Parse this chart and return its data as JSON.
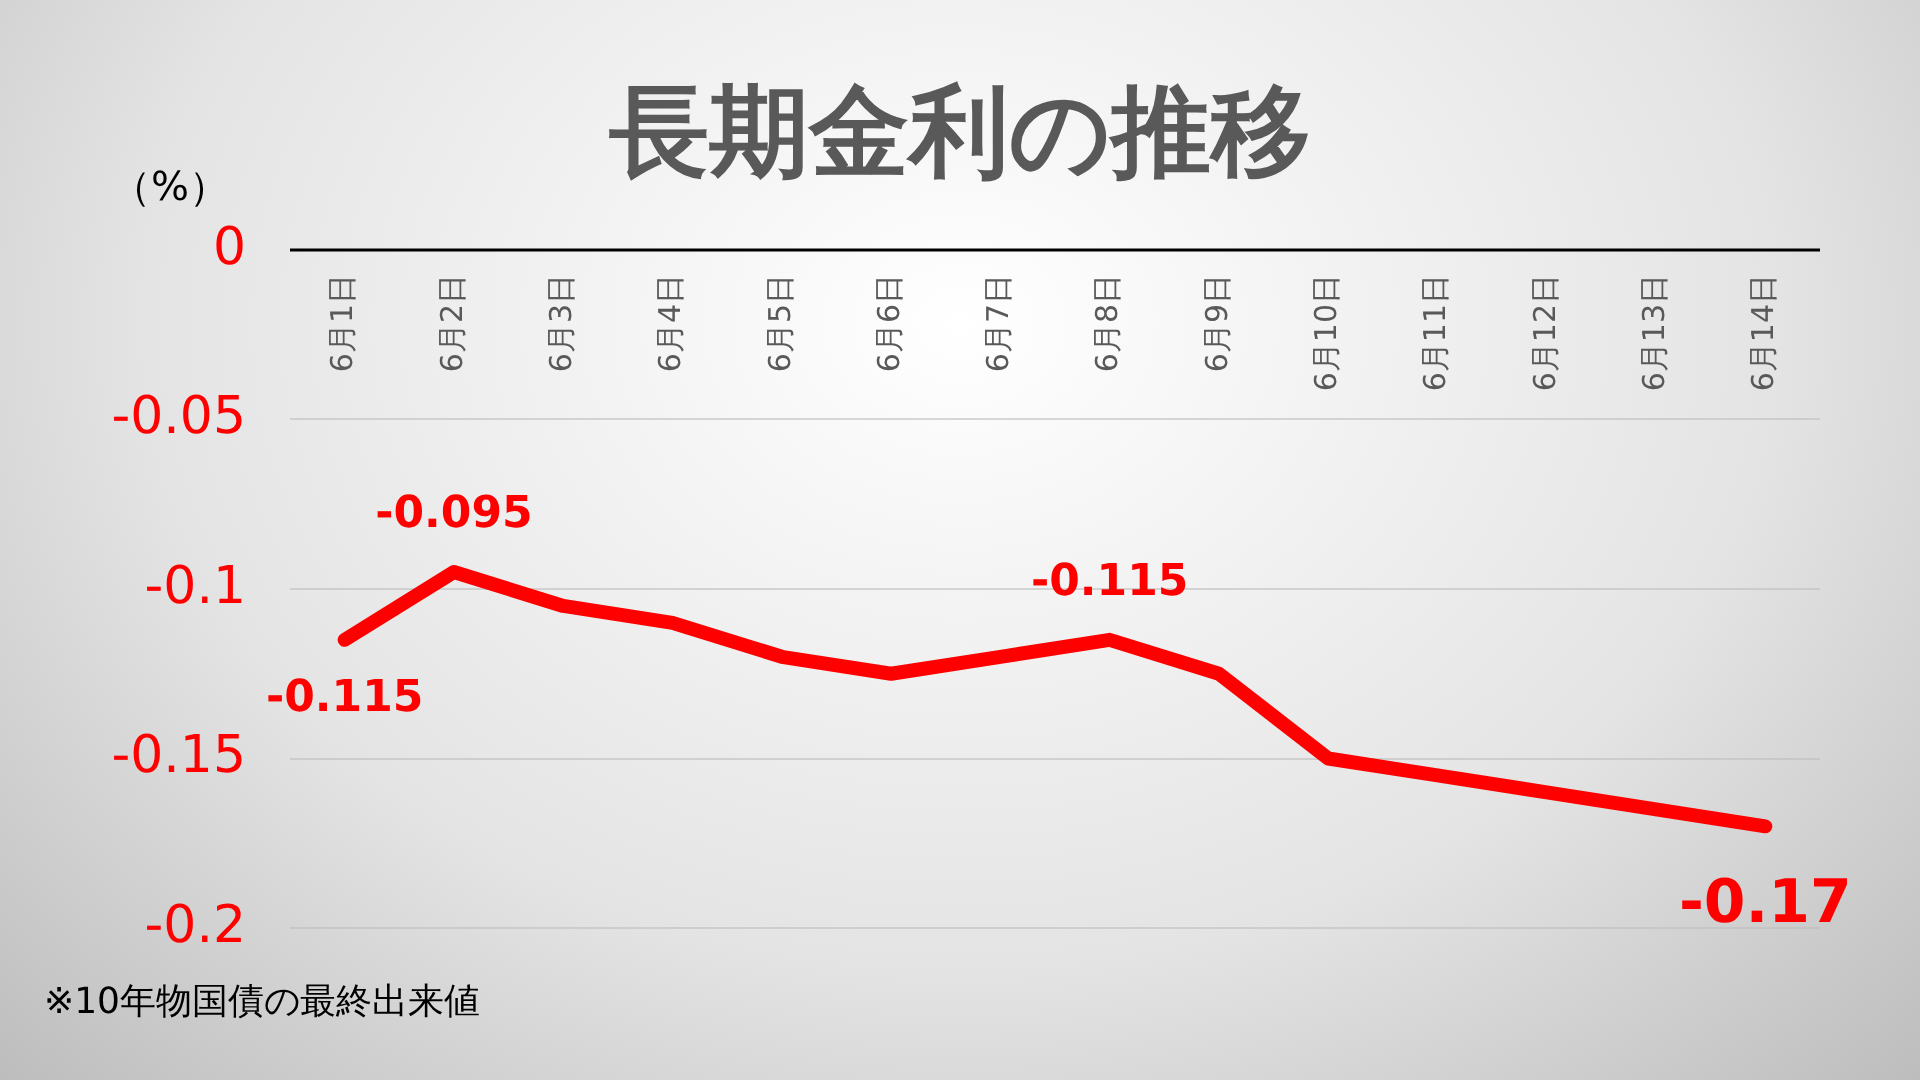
{
  "chart_data": {
    "type": "line",
    "title": "長期金利の推移",
    "ylabel": "（%）",
    "categories": [
      "6月1日",
      "6月2日",
      "6月3日",
      "6月4日",
      "6月5日",
      "6月6日",
      "6月7日",
      "6月8日",
      "6月9日",
      "6月10日",
      "6月11日",
      "6月12日",
      "6月13日",
      "6月14日"
    ],
    "series": [
      {
        "color": "#ff0000",
        "values": [
          -0.115,
          -0.095,
          -0.105,
          -0.11,
          -0.12,
          -0.125,
          -0.12,
          -0.115,
          -0.125,
          -0.15,
          -0.155,
          -0.16,
          -0.165,
          -0.17
        ],
        "value_labels": [
          "-0.115",
          "-0.095",
          null,
          null,
          null,
          null,
          null,
          "-0.115",
          null,
          null,
          null,
          null,
          null,
          "-0.17"
        ]
      }
    ],
    "ylim": [
      -0.2,
      0
    ],
    "yticks": [
      0,
      -0.05,
      -0.1,
      -0.15,
      -0.2
    ],
    "grid": "y",
    "marker": "none",
    "line_style": "solid",
    "legend": false,
    "annotations": [
      "※10年物国債の最終出来値"
    ]
  }
}
